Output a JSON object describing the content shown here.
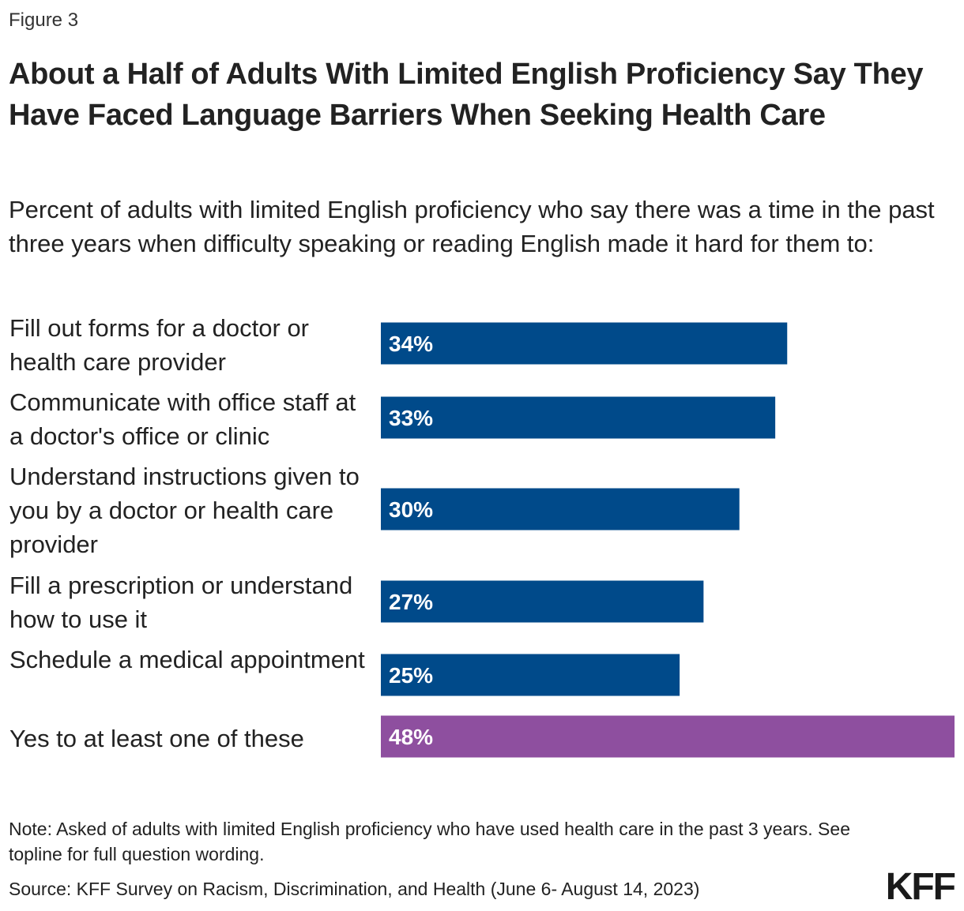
{
  "figure_label": "Figure 3",
  "title": "About a Half of Adults With Limited English Proficiency Say They Have Faced Language Barriers When Seeking Health Care",
  "subtitle": "Percent of adults with limited English proficiency who say there was a time in the past three years when difficulty speaking or reading English made it hard for them to:",
  "chart_data": {
    "type": "bar",
    "orientation": "horizontal",
    "categories": [
      "Fill out forms for a doctor or health care provider",
      "Communicate with office staff at a doctor's office or clinic",
      "Understand instructions given to you by a doctor or health care provider",
      "Fill a prescription or understand how to use it",
      "Schedule a medical appointment",
      "Yes to at least one of these"
    ],
    "values": [
      34,
      33,
      30,
      27,
      25,
      48
    ],
    "value_labels": [
      "34%",
      "33%",
      "30%",
      "27%",
      "25%",
      "48%"
    ],
    "bar_colors": [
      "#004a8a",
      "#004a8a",
      "#004a8a",
      "#004a8a",
      "#004a8a",
      "#8e4f9f"
    ],
    "xlim": [
      0,
      48
    ],
    "grid": false,
    "legend": "none"
  },
  "note": "Note:  Asked of adults with limited English proficiency who have used health care in the past 3 years. See topline for full question wording.",
  "source": "Source: KFF Survey on Racism, Discrimination, and Health (June 6- August 14, 2023)",
  "logo": "KFF",
  "colors": {
    "primary_bar": "#004a8a",
    "highlight_bar": "#8e4f9f",
    "label_text": "#ffffff"
  }
}
